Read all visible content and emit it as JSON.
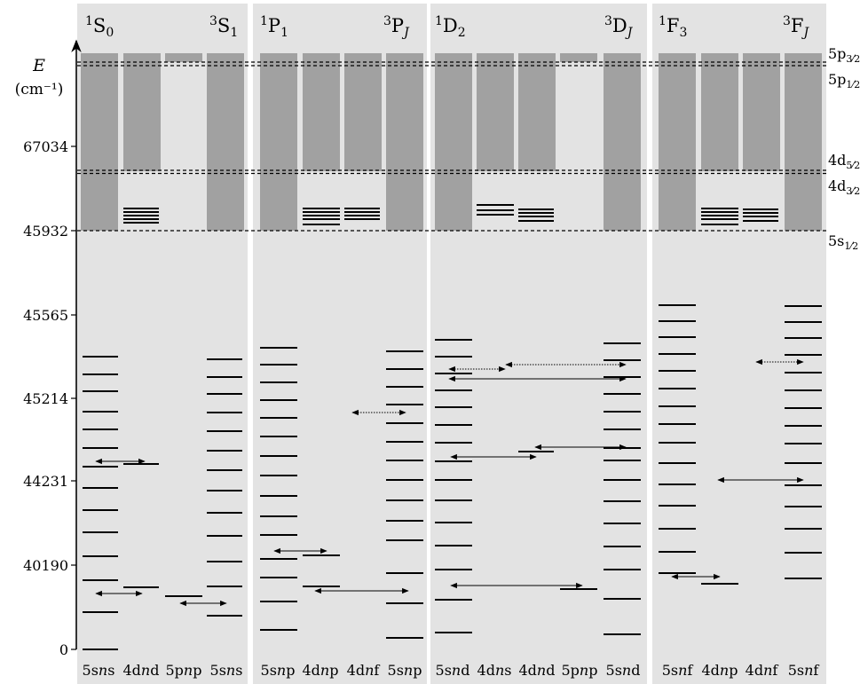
{
  "axis": {
    "ylabel": "E",
    "yunit": "(cm⁻¹)",
    "ticks": [
      "0",
      "40190",
      "44231",
      "45214",
      "45565",
      "45932",
      "67034"
    ]
  },
  "thresholds": [
    {
      "label": "5p",
      "sub": "3/2"
    },
    {
      "label": "5p",
      "sub": "1/2"
    },
    {
      "label": "4d",
      "sub": "5/2"
    },
    {
      "label": "4d",
      "sub": "3/2"
    },
    {
      "label": "5s",
      "sub": "1/2"
    }
  ],
  "panels": [
    {
      "left_term": {
        "mult": "1",
        "letter": "S",
        "sub": "0"
      },
      "right_term": {
        "mult": "3",
        "letter": "S",
        "sub": "1"
      },
      "columns": [
        {
          "pre": "5s",
          "mid": "n",
          "post": "s"
        },
        {
          "pre": "4d",
          "mid": "n",
          "post": "d"
        },
        {
          "pre": "5p",
          "mid": "n",
          "post": "p"
        },
        {
          "pre": "5s",
          "mid": "n",
          "post": "s"
        }
      ]
    },
    {
      "left_term": {
        "mult": "1",
        "letter": "P",
        "sub": "1"
      },
      "right_term": {
        "mult": "3",
        "letter": "P",
        "sub": "J"
      },
      "columns": [
        {
          "pre": "5s",
          "mid": "n",
          "post": "p"
        },
        {
          "pre": "4d",
          "mid": "n",
          "post": "p"
        },
        {
          "pre": "4d",
          "mid": "n",
          "post": "f"
        },
        {
          "pre": "5s",
          "mid": "n",
          "post": "p"
        }
      ]
    },
    {
      "left_term": {
        "mult": "1",
        "letter": "D",
        "sub": "2"
      },
      "right_term": {
        "mult": "3",
        "letter": "D",
        "sub": "J"
      },
      "columns": [
        {
          "pre": "5s",
          "mid": "n",
          "post": "d"
        },
        {
          "pre": "4d",
          "mid": "n",
          "post": "s"
        },
        {
          "pre": "4d",
          "mid": "n",
          "post": "d"
        },
        {
          "pre": "5p",
          "mid": "n",
          "post": "p"
        },
        {
          "pre": "5s",
          "mid": "n",
          "post": "d"
        }
      ]
    },
    {
      "left_term": {
        "mult": "1",
        "letter": "F",
        "sub": "3"
      },
      "right_term": {
        "mult": "3",
        "letter": "F",
        "sub": "J"
      },
      "columns": [
        {
          "pre": "5s",
          "mid": "n",
          "post": "f"
        },
        {
          "pre": "4d",
          "mid": "n",
          "post": "p"
        },
        {
          "pre": "4d",
          "mid": "n",
          "post": "f"
        },
        {
          "pre": "5s",
          "mid": "n",
          "post": "f"
        }
      ]
    }
  ]
}
